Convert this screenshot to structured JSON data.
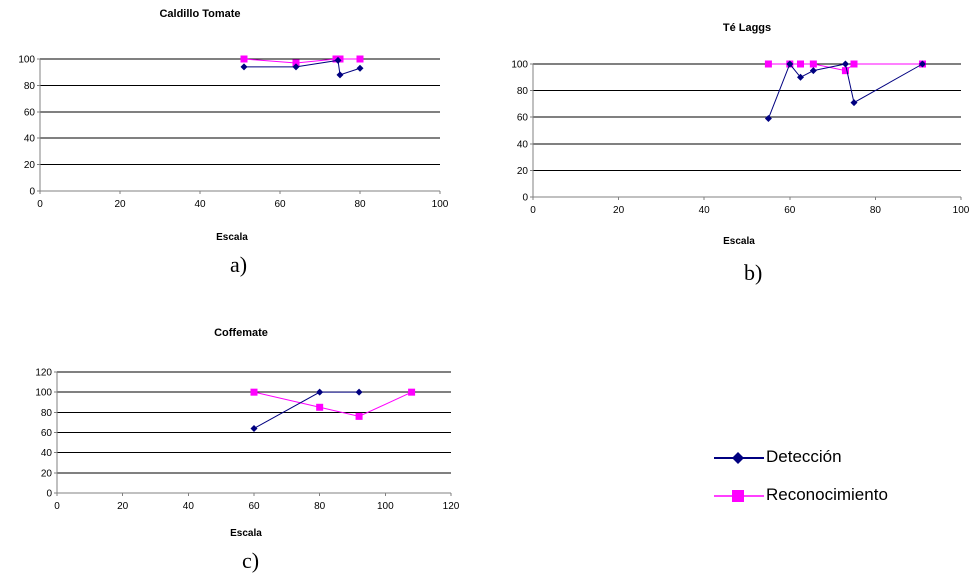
{
  "colors": {
    "deteccion": "#000080",
    "reconocimiento": "#FF00FF"
  },
  "legend": {
    "items": [
      {
        "label": "Detección",
        "color": "#000080",
        "marker": "diamond"
      },
      {
        "label": "Reconocimiento",
        "color": "#FF00FF",
        "marker": "square"
      }
    ]
  },
  "charts": {
    "a": {
      "caption": "a)"
    },
    "b": {
      "caption": "b)"
    },
    "c": {
      "caption": "c)"
    }
  },
  "chart_data": [
    {
      "type": "line",
      "title": "Caldillo Tomate",
      "xlabel": "Escala",
      "ylabel": "",
      "xlim": [
        0,
        100
      ],
      "ylim": [
        0,
        100
      ],
      "xticks": [
        0,
        20,
        40,
        60,
        80,
        100
      ],
      "yticks": [
        0,
        20,
        40,
        60,
        80,
        100
      ],
      "grid": "horizontal",
      "series": [
        {
          "name": "Detección",
          "color": "#000080",
          "marker": "diamond",
          "x": [
            51,
            64,
            74.5,
            75,
            80
          ],
          "y": [
            94,
            94,
            99,
            88,
            93
          ]
        },
        {
          "name": "Reconocimiento",
          "color": "#FF00FF",
          "marker": "square",
          "x": [
            51,
            64,
            74,
            75,
            80
          ],
          "y": [
            100,
            97,
            100,
            100,
            100
          ]
        }
      ]
    },
    {
      "type": "line",
      "title": "Té Laggs",
      "xlabel": "Escala",
      "ylabel": "",
      "xlim": [
        0,
        100
      ],
      "ylim": [
        0,
        100
      ],
      "xticks": [
        0,
        20,
        40,
        60,
        80,
        100
      ],
      "yticks": [
        0,
        20,
        40,
        60,
        80,
        100
      ],
      "grid": "horizontal",
      "series": [
        {
          "name": "Detección",
          "color": "#000080",
          "marker": "diamond",
          "x": [
            55,
            60,
            62.5,
            65.5,
            73,
            75,
            91
          ],
          "y": [
            59,
            100,
            90,
            95,
            100,
            71,
            100
          ]
        },
        {
          "name": "Reconocimiento",
          "color": "#FF00FF",
          "marker": "square",
          "x": [
            55,
            60,
            62.5,
            65.5,
            73,
            75,
            91
          ],
          "y": [
            100,
            100,
            100,
            100,
            95,
            100,
            100
          ]
        }
      ]
    },
    {
      "type": "line",
      "title": "Coffemate",
      "xlabel": "Escala",
      "ylabel": "",
      "xlim": [
        0,
        120
      ],
      "ylim": [
        0,
        120
      ],
      "xticks": [
        0,
        20,
        40,
        60,
        80,
        100,
        120
      ],
      "yticks": [
        0,
        20,
        40,
        60,
        80,
        100,
        120
      ],
      "grid": "horizontal",
      "series": [
        {
          "name": "Detección",
          "color": "#000080",
          "marker": "diamond",
          "x": [
            60,
            80,
            92
          ],
          "y": [
            64,
            100,
            100
          ]
        },
        {
          "name": "Reconocimiento",
          "color": "#FF00FF",
          "marker": "square",
          "x": [
            60,
            80,
            92,
            108
          ],
          "y": [
            100,
            85,
            76,
            100
          ]
        }
      ]
    }
  ]
}
